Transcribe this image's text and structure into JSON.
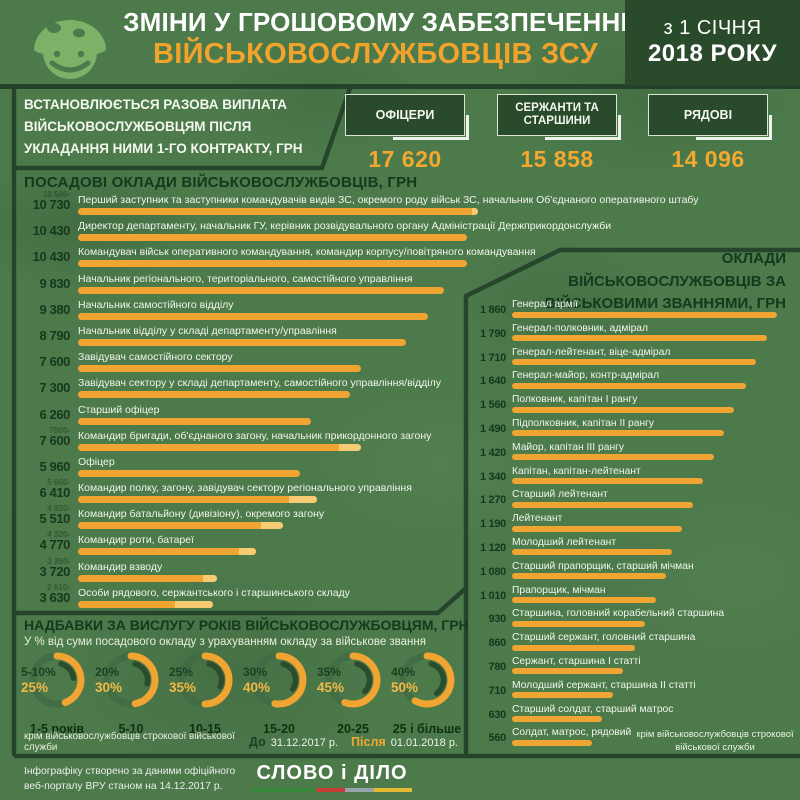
{
  "header": {
    "title_line1": "ЗМІНИ У ГРОШОВОМУ ЗАБЕЗПЕЧЕННІ",
    "title_line2": "ВІЙСЬКОВОСЛУЖБОВЦІВ ЗСУ",
    "date_line1": "з 1 СІЧНЯ",
    "date_line2": "2018 РОКУ",
    "mascot_icon": "slovoidilo-helmet-smiley"
  },
  "one_time_payment": {
    "heading_lines": [
      "ВСТАНОВЛЮЄТЬСЯ РАЗОВА ВИПЛАТА",
      "ВІЙСЬКОВОСЛУЖБОВЦЯМ ПІСЛЯ",
      "УКЛАДАННЯ НИМИ 1-ГО КОНТРАКТУ, ГРН"
    ],
    "groups": [
      {
        "label": "ОФІЦЕРИ",
        "value": "17 620"
      },
      {
        "label": "СЕРЖАНТИ ТА СТАРШИНИ",
        "value": "15 858"
      },
      {
        "label": "РЯДОВІ",
        "value": "14 096"
      }
    ]
  },
  "chart_data": [
    {
      "type": "bar",
      "orientation": "horizontal",
      "title": "ПОСАДОВІ ОКЛАДИ ВІЙСЬКОВОСЛУЖБОВЦІВ, ГРН",
      "unit": "грн",
      "max": 10730,
      "rows": [
        {
          "value": 10730,
          "from": 10580,
          "value_label": "10 730",
          "range_label": "10 580-",
          "label": "Перший заступник та заступники командувачів видів ЗС, окремого роду військ ЗС, начальник Об'єднаного оперативного штабу"
        },
        {
          "value": 10430,
          "value_label": "10 430",
          "label": "Директор департаменту, начальник ГУ, керівник розвідувального органу Адміністрації Держприкордонслужби"
        },
        {
          "value": 10430,
          "value_label": "10 430",
          "label": "Командувач військ оперативного командування, командир корпусу/повітряного командування"
        },
        {
          "value": 9830,
          "value_label": "9 830",
          "label": "Начальник регіонального, територіального, самостійного управління"
        },
        {
          "value": 9380,
          "value_label": "9 380",
          "label": "Начальник самостійного відділу"
        },
        {
          "value": 8790,
          "value_label": "8 790",
          "label": "Начальник відділу у складі департаменту/управління"
        },
        {
          "value": 7600,
          "value_label": "7 600",
          "label": "Завідувач самостійного сектору"
        },
        {
          "value": 7300,
          "value_label": "7 300",
          "label": "Завідувач сектору у складі департаменту, самостійного управління/відділу"
        },
        {
          "value": 6260,
          "value_label": "6 260",
          "label": "Старший офіцер"
        },
        {
          "value": 7600,
          "from": 7000,
          "value_label": "7 600",
          "range_label": "7000-",
          "label": "Командир бригади, об'єднаного загону, начальник прикордонного загону"
        },
        {
          "value": 5960,
          "value_label": "5 960",
          "label": "Офіцер"
        },
        {
          "value": 6410,
          "from": 5660,
          "value_label": "6 410",
          "range_label": "5 660-",
          "label": "Командир полку, загону, завідувач сектору регіонального управління"
        },
        {
          "value": 5510,
          "from": 4920,
          "value_label": "5 510",
          "range_label": "4 920-",
          "label": "Командир батальйону (дивізіону), окремого загону"
        },
        {
          "value": 4770,
          "from": 4320,
          "value_label": "4 770",
          "range_label": "4 320-",
          "label": "Командир роти, батареї"
        },
        {
          "value": 3720,
          "from": 3350,
          "value_label": "3 720",
          "range_label": "3 350-",
          "label": "Командир взводу"
        },
        {
          "value": 3630,
          "from": 2610,
          "value_label": "3 630",
          "range_label": "2 610-",
          "label": "Особи рядового, сержантського і старшинського складу"
        }
      ]
    },
    {
      "type": "bar",
      "orientation": "horizontal",
      "title_lines": [
        "ОКЛАДИ",
        "ВІЙСЬКОВОСЛУЖБОВЦІВ ЗА",
        "ВІЙСЬКОВИМИ ЗВАННЯМИ, ГРН"
      ],
      "unit": "грн",
      "max": 1860,
      "rows": [
        {
          "value": 1860,
          "value_label": "1 860",
          "label": "Генерал армії"
        },
        {
          "value": 1790,
          "value_label": "1 790",
          "label": "Генерал-полковник, адмірал"
        },
        {
          "value": 1710,
          "value_label": "1 710",
          "label": "Генерал-лейтенант, віце-адмірал"
        },
        {
          "value": 1640,
          "value_label": "1 640",
          "label": "Генерал-майор, контр-адмірал"
        },
        {
          "value": 1560,
          "value_label": "1 560",
          "label": "Полковник, капітан I рангу"
        },
        {
          "value": 1490,
          "value_label": "1 490",
          "label": "Підполковник, капітан II рангу"
        },
        {
          "value": 1420,
          "value_label": "1 420",
          "label": "Майор, капітан III рангу"
        },
        {
          "value": 1340,
          "value_label": "1 340",
          "label": "Капітан, капітан-лейтенант"
        },
        {
          "value": 1270,
          "value_label": "1 270",
          "label": "Старший лейтенант"
        },
        {
          "value": 1190,
          "value_label": "1 190",
          "label": "Лейтенант"
        },
        {
          "value": 1120,
          "value_label": "1 120",
          "label": "Молодший лейтенант"
        },
        {
          "value": 1080,
          "value_label": "1 080",
          "label": "Старший прапорщик, старший мічман"
        },
        {
          "value": 1010,
          "value_label": "1 010",
          "label": "Прапорщик, мічман"
        },
        {
          "value": 930,
          "value_label": "930",
          "label": "Старшина, головний корабельний старшина"
        },
        {
          "value": 860,
          "value_label": "860",
          "label": "Старший сержант, головний старшина"
        },
        {
          "value": 780,
          "value_label": "780",
          "label": "Сержант, старшина I статті"
        },
        {
          "value": 710,
          "value_label": "710",
          "label": "Молодший сержант, старшина II статті"
        },
        {
          "value": 630,
          "value_label": "630",
          "label": "Старший солдат, старший матрос"
        },
        {
          "value": 560,
          "value_label": "560",
          "label": "Солдат, матрос, рядовий"
        }
      ],
      "note": "крім військовослужбовців строкової військової служби"
    },
    {
      "type": "donut-gauges",
      "title": "НАДБАВКИ ЗА ВИСЛУГУ РОКІВ ВІЙСЬКОВОСЛУЖБОВЦЯМ, ГРН",
      "subtitle": "У % від суми посадового окладу з урахуванням окладу за військове звання",
      "items": [
        {
          "before": "5-10%",
          "before_pct": 10,
          "after": "25%",
          "after_pct": 25,
          "label": "1-5 років"
        },
        {
          "before": "20%",
          "before_pct": 20,
          "after": "30%",
          "after_pct": 30,
          "label": "5-10"
        },
        {
          "before": "25%",
          "before_pct": 25,
          "after": "35%",
          "after_pct": 35,
          "label": "10-15"
        },
        {
          "before": "30%",
          "before_pct": 30,
          "after": "40%",
          "after_pct": 40,
          "label": "15-20"
        },
        {
          "before": "35%",
          "before_pct": 35,
          "after": "45%",
          "after_pct": 45,
          "label": "20-25"
        },
        {
          "before": "40%",
          "before_pct": 40,
          "after": "50%",
          "after_pct": 50,
          "label": "25 і більше"
        }
      ],
      "note": "крім військовослужбовців строкової військової служби",
      "legend": {
        "before_label": "До",
        "before_date": "31.12.2017 р.",
        "after_label": "Після",
        "after_date": "01.01.2018 р."
      }
    }
  ],
  "footer": {
    "source_line1": "Інфографіку створено за даними офіційного",
    "source_line2": "веб-порталу ВРУ станом на 14.12.2017 р.",
    "logo_text": "СЛОВО і ДІЛО"
  },
  "colors": {
    "background_green": "#4c7a4b",
    "frame_dark_green": "#24422a",
    "panel_dark_green": "#294a2b",
    "bar_orange": "#f0a431",
    "bar_range_tip": "#f7ca74",
    "accent_orange": "#f3a82f",
    "value_dark_green": "#16381c",
    "text_white": "#f2f5ec",
    "logo_stripe": [
      "#37873c",
      "#c53c34",
      "#9aa5ab",
      "#e5bb33"
    ]
  }
}
